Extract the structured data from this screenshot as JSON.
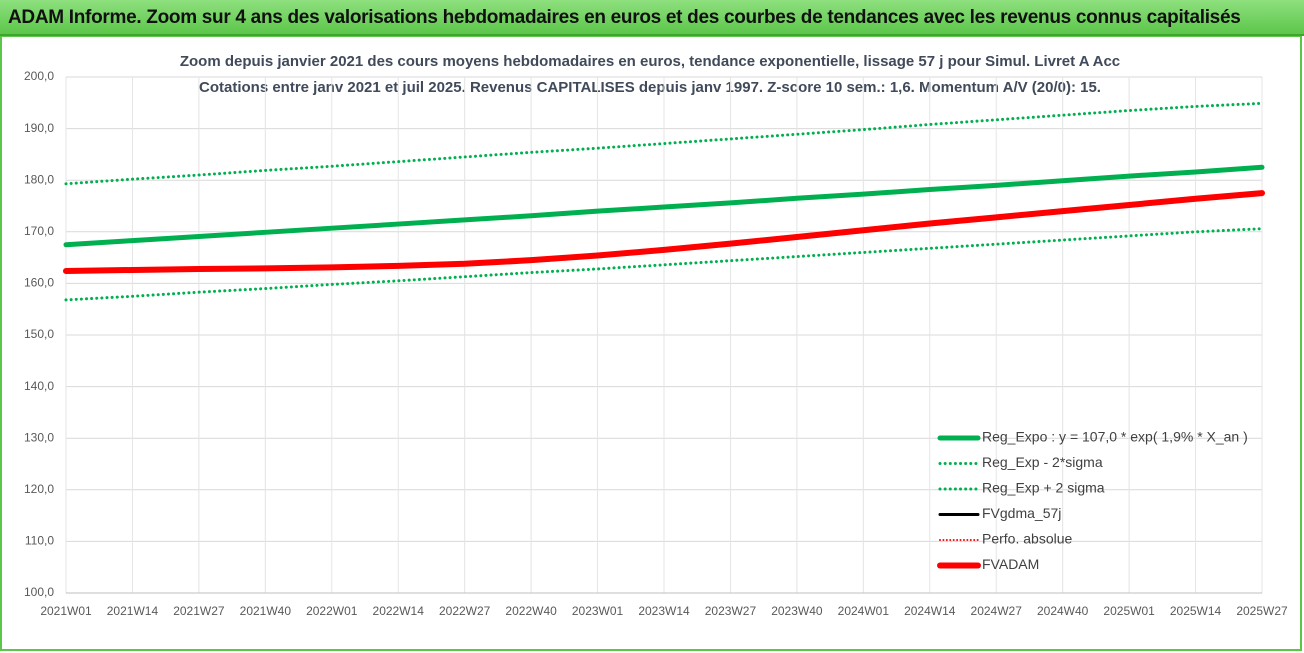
{
  "chart_data": {
    "type": "line",
    "banner": "ADAM Informe. Zoom sur 4 ans des valorisations hebdomadaires en euros et des courbes de tendances avec les revenus connus capitalisés",
    "title": "Zoom depuis janvier 2021 des cours moyens hebdomadaires en euros, tendance exponentielle, lissage 57 j pour Simul. Livret A Acc",
    "subtitle": "Cotations entre janv 2021 et juil 2025. Revenus CAPITALISES depuis janv 1997. Z-score 10 sem.: 1,6. Momentum A/V (20/0): 15.",
    "categories": [
      "2021W01",
      "2021W14",
      "2021W27",
      "2021W40",
      "2022W01",
      "2022W14",
      "2022W27",
      "2022W40",
      "2023W01",
      "2023W14",
      "2023W27",
      "2023W40",
      "2024W01",
      "2024W14",
      "2024W27",
      "2024W40",
      "2025W01",
      "2025W14",
      "2025W27"
    ],
    "ylim": [
      100,
      200
    ],
    "yticks": [
      {
        "value": 100,
        "label": "100,0"
      },
      {
        "value": 110,
        "label": "110,0"
      },
      {
        "value": 120,
        "label": "120,0"
      },
      {
        "value": 130,
        "label": "130,0"
      },
      {
        "value": 140,
        "label": "140,0"
      },
      {
        "value": 150,
        "label": "150,0"
      },
      {
        "value": 160,
        "label": "160,0"
      },
      {
        "value": 170,
        "label": "170,0"
      },
      {
        "value": 180,
        "label": "180,0"
      },
      {
        "value": 190,
        "label": "190,0"
      },
      {
        "value": 200,
        "label": "200,0"
      }
    ],
    "grid": true,
    "legend": "lower-right",
    "series": [
      {
        "name": "Reg_Expo : y = 107,0 * exp( 1,9% *  X_an )",
        "color": "#00b050",
        "style": "solid",
        "width": 5,
        "values": [
          167.5,
          168.3,
          169.1,
          169.9,
          170.7,
          171.5,
          172.3,
          173.1,
          174.0,
          174.8,
          175.6,
          176.5,
          177.3,
          178.2,
          179.0,
          179.9,
          180.8,
          181.6,
          182.5
        ]
      },
      {
        "name": "Reg_Exp - 2*sigma",
        "color": "#00b050",
        "style": "dotted",
        "width": 3,
        "values": [
          156.8,
          157.5,
          158.3,
          159.0,
          159.8,
          160.5,
          161.3,
          162.1,
          162.8,
          163.6,
          164.4,
          165.2,
          166.0,
          166.8,
          167.6,
          168.4,
          169.2,
          170.0,
          170.6
        ]
      },
      {
        "name": "Reg_Exp + 2 sigma",
        "color": "#00b050",
        "style": "dotted",
        "width": 3,
        "values": [
          179.3,
          180.2,
          181.0,
          181.9,
          182.7,
          183.6,
          184.5,
          185.4,
          186.2,
          187.1,
          188.0,
          188.9,
          189.8,
          190.8,
          191.7,
          192.6,
          193.5,
          194.3,
          194.9
        ]
      },
      {
        "name": "FVgdma_57j",
        "color": "#000000",
        "style": "solid",
        "width": 3,
        "values": [
          162.4,
          162.6,
          162.8,
          162.9,
          163.1,
          163.4,
          163.8,
          164.5,
          165.4,
          166.5,
          167.7,
          169.0,
          170.3,
          171.6,
          172.8,
          174.0,
          175.2,
          176.4,
          177.5
        ]
      },
      {
        "name": "Perfo. absolue",
        "color": "#ff0000",
        "style": "dotted",
        "width": 2,
        "values": [
          162.4,
          162.6,
          162.8,
          162.9,
          163.1,
          163.4,
          163.8,
          164.5,
          165.4,
          166.5,
          167.7,
          169.0,
          170.3,
          171.6,
          172.8,
          174.0,
          175.2,
          176.4,
          177.5
        ]
      },
      {
        "name": "FVADAM",
        "color": "#ff0000",
        "style": "solid",
        "width": 6,
        "values": [
          162.4,
          162.6,
          162.8,
          162.9,
          163.1,
          163.4,
          163.8,
          164.5,
          165.4,
          166.5,
          167.7,
          169.0,
          170.3,
          171.6,
          172.8,
          174.0,
          175.2,
          176.4,
          177.5
        ]
      }
    ]
  }
}
